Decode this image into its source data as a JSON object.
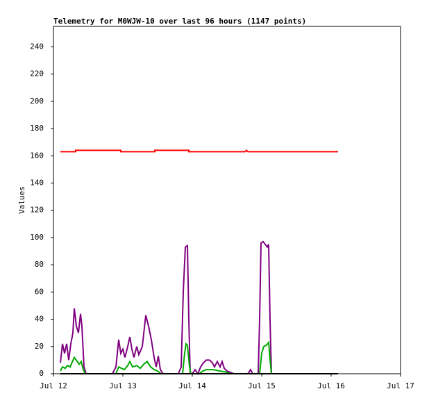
{
  "chart_data": {
    "type": "line",
    "title": "Telemetry for M0WJW-10 over last 96 hours (1147 points)",
    "ylabel": "Values",
    "xlim": [
      0,
      5
    ],
    "xticks": [
      {
        "value": 0,
        "label": "Jul 12"
      },
      {
        "value": 1,
        "label": "Jul 13"
      },
      {
        "value": 2,
        "label": "Jul 14"
      },
      {
        "value": 3,
        "label": "Jul 15"
      },
      {
        "value": 4,
        "label": "Jul 16"
      },
      {
        "value": 5,
        "label": "Jul 17"
      }
    ],
    "ylim": [
      0,
      255
    ],
    "yticks": [
      0,
      20,
      40,
      60,
      80,
      100,
      120,
      140,
      160,
      180,
      200,
      220,
      240
    ],
    "series": [
      {
        "color": "#ff0000",
        "x": [
          0.1,
          0.32,
          0.32,
          0.97,
          0.97,
          1.46,
          1.46,
          1.95,
          1.95,
          2.76,
          2.78,
          2.8,
          4.1
        ],
        "values": [
          163,
          163,
          164,
          164,
          163,
          163,
          164,
          164,
          163,
          163,
          164,
          163,
          163
        ]
      },
      {
        "color": "#800080",
        "x": [
          0.1,
          0.13,
          0.16,
          0.19,
          0.22,
          0.25,
          0.28,
          0.3,
          0.33,
          0.36,
          0.39,
          0.41,
          0.44,
          0.47,
          0.85,
          0.9,
          0.94,
          0.97,
          1.0,
          1.03,
          1.07,
          1.1,
          1.13,
          1.16,
          1.2,
          1.23,
          1.28,
          1.33,
          1.37,
          1.41,
          1.45,
          1.48,
          1.51,
          1.54,
          1.58,
          1.8,
          1.84,
          1.87,
          1.9,
          1.93,
          1.95,
          1.97,
          2.0,
          2.04,
          2.08,
          2.12,
          2.16,
          2.2,
          2.25,
          2.29,
          2.32,
          2.36,
          2.4,
          2.43,
          2.46,
          2.5,
          2.55,
          2.6,
          2.8,
          2.84,
          2.87,
          2.95,
          2.97,
          2.99,
          3.02,
          3.05,
          3.08,
          3.1,
          3.12,
          3.14,
          4.1
        ],
        "values": [
          8,
          22,
          15,
          22,
          10,
          22,
          30,
          48,
          35,
          30,
          44,
          35,
          5,
          0,
          0,
          5,
          25,
          15,
          18,
          12,
          20,
          27,
          18,
          12,
          20,
          14,
          20,
          43,
          35,
          25,
          12,
          5,
          13,
          3,
          0,
          0,
          5,
          60,
          93,
          94,
          40,
          0,
          0,
          3,
          0,
          5,
          8,
          10,
          10,
          8,
          5,
          9,
          5,
          9,
          4,
          2,
          1,
          0,
          0,
          3,
          0,
          0,
          40,
          96,
          97,
          95,
          93,
          95,
          40,
          0,
          0
        ]
      },
      {
        "color": "#00aa00",
        "x": [
          0.1,
          0.13,
          0.17,
          0.2,
          0.24,
          0.3,
          0.33,
          0.37,
          0.4,
          0.43,
          0.46,
          0.9,
          0.94,
          0.98,
          1.02,
          1.07,
          1.1,
          1.14,
          1.2,
          1.25,
          1.3,
          1.35,
          1.4,
          1.45,
          1.5,
          1.55,
          1.86,
          1.89,
          1.91,
          1.93,
          1.96,
          1.98,
          2.1,
          2.15,
          2.2,
          2.3,
          2.4,
          2.5,
          2.55,
          2.97,
          3.0,
          3.03,
          3.07,
          3.1,
          3.12,
          3.14
        ],
        "values": [
          2,
          5,
          4,
          6,
          5,
          12,
          10,
          7,
          9,
          3,
          0,
          0,
          5,
          4,
          3,
          6,
          9,
          5,
          6,
          4,
          7,
          9,
          5,
          3,
          2,
          0,
          0,
          15,
          22,
          21,
          5,
          0,
          0,
          2,
          3,
          3,
          2,
          1,
          0,
          0,
          15,
          20,
          21,
          23,
          10,
          0
        ]
      },
      {
        "color": "#000000",
        "x": [
          0.1,
          4.1
        ],
        "values": [
          0,
          0
        ]
      }
    ]
  }
}
